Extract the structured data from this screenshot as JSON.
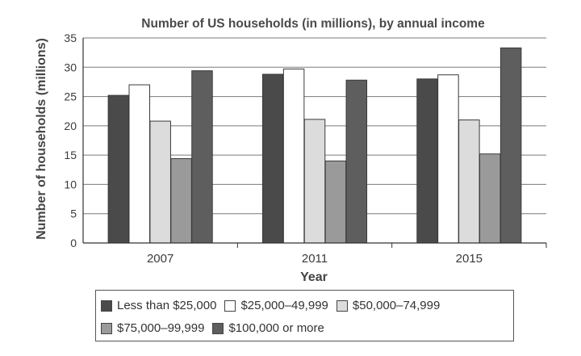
{
  "chart_data": {
    "type": "bar",
    "title": "Number of US households (in millions), by annual income",
    "xlabel": "Year",
    "ylabel": "Number of households (millions)",
    "ylim": [
      0,
      35
    ],
    "yticks": [
      0,
      5,
      10,
      15,
      20,
      25,
      30,
      35
    ],
    "grid": true,
    "legend_position": "bottom",
    "categories": [
      "2007",
      "2011",
      "2015"
    ],
    "series": [
      {
        "name": "Less than $25,000",
        "color": "#4a4a4a",
        "values": [
          25.2,
          28.8,
          28
        ]
      },
      {
        "name": "$25,000–49,999",
        "color": "#ffffff",
        "values": [
          27,
          29.7,
          28.7
        ]
      },
      {
        "name": "$50,000–74,999",
        "color": "#dcdcdc",
        "values": [
          20.8,
          21.1,
          21
        ]
      },
      {
        "name": "$75,000–99,999",
        "color": "#9a9a9a",
        "values": [
          14.4,
          14,
          15.2
        ]
      },
      {
        "name": "$100,000 or more",
        "color": "#5e5e5e",
        "values": [
          29.4,
          27.8,
          33.3
        ]
      }
    ]
  }
}
